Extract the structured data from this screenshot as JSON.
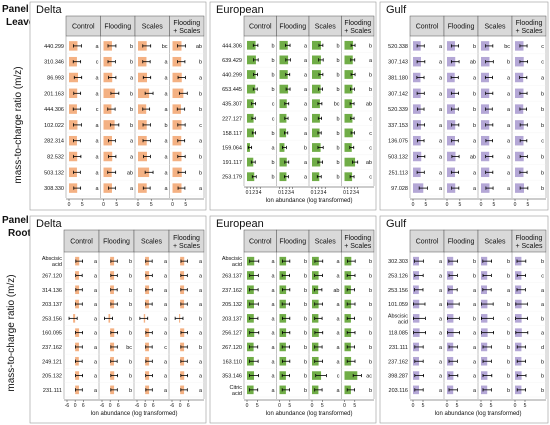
{
  "panel_a": {
    "label": "Panel A",
    "sub": "Leaves"
  },
  "panel_b": {
    "label": "Panel B",
    "sub": "Roots"
  },
  "y_axis_title": "mass-to-charge ratio (m/z)",
  "x_axis_title": "Ion abundance (log transformed)",
  "treatment_headers": [
    "Control",
    "Flooding",
    "Scales",
    "Flooding + Scales"
  ],
  "colors": {
    "Delta": "#f4b183",
    "European": "#70ad47",
    "Gulf": "#b4a7d6",
    "header_bg": "#d9d9d9",
    "error_bar": "#000000"
  },
  "chart_data": [
    {
      "type": "bar",
      "panel": "Panel A",
      "title": "Delta",
      "xlabel": "",
      "ylabel": "mass-to-charge ratio (m/z)",
      "xticks": [
        "0",
        "5"
      ],
      "xlim": [
        0,
        7
      ],
      "categories": [
        "440.299",
        "310.346",
        "86.993",
        "201.163",
        "444.306",
        "102.022",
        "282.314",
        "82.532",
        "503.132",
        "308.330"
      ],
      "series": [
        {
          "name": "Control",
          "values": [
            3.2,
            3.0,
            3.4,
            3.1,
            3.0,
            3.2,
            3.0,
            3.1,
            3.0,
            3.1
          ],
          "err": [
            1.5,
            1.4,
            1.4,
            1.3,
            1.4,
            1.5,
            1.3,
            1.4,
            1.3,
            1.3
          ],
          "letters": [
            "a",
            "c",
            "a",
            "a",
            "c",
            "a",
            "a",
            "a",
            "a",
            "a"
          ]
        },
        {
          "name": "Flooding",
          "values": [
            3.2,
            3.1,
            3.3,
            4.3,
            3.0,
            4.2,
            3.2,
            3.3,
            3.1,
            3.2
          ],
          "err": [
            1.5,
            1.4,
            1.4,
            1.5,
            1.4,
            1.6,
            1.3,
            1.4,
            1.5,
            1.3
          ],
          "letters": [
            "b",
            "b",
            "a",
            "b",
            "b",
            "b",
            "a",
            "a",
            "ab",
            "a"
          ]
        },
        {
          "name": "Scales",
          "values": [
            3.3,
            3.2,
            3.4,
            4.2,
            3.1,
            3.3,
            3.3,
            3.4,
            4.2,
            3.3
          ],
          "err": [
            1.5,
            1.4,
            1.4,
            1.5,
            1.3,
            1.4,
            1.4,
            1.3,
            1.5,
            1.3
          ],
          "letters": [
            "bc",
            "a",
            "a",
            "a",
            "a",
            "b",
            "a",
            "a",
            "a",
            "a"
          ]
        },
        {
          "name": "Flooding + Scales",
          "values": [
            3.4,
            3.3,
            3.5,
            4.1,
            3.2,
            3.4,
            3.3,
            3.4,
            3.5,
            3.4
          ],
          "err": [
            1.5,
            1.4,
            1.4,
            1.5,
            1.4,
            1.4,
            1.3,
            1.4,
            1.4,
            1.3
          ],
          "letters": [
            "ab",
            "b",
            "a",
            "b",
            "b",
            "c",
            "a",
            "b",
            "b",
            "a"
          ]
        }
      ]
    },
    {
      "type": "bar",
      "panel": "Panel A",
      "title": "European",
      "xlabel": "Ion abundance (log transformed)",
      "ylabel": "",
      "xticks": [
        "0",
        "1",
        "2",
        "3",
        "4"
      ],
      "xlim": [
        0,
        5
      ],
      "categories": [
        "444.306",
        "639.429",
        "440.299",
        "653.445",
        "435.307",
        "227.127",
        "158.117",
        "159.064",
        "191.117",
        "253.179"
      ],
      "series": [
        {
          "name": "Control",
          "values": [
            2.6,
            2.7,
            2.6,
            2.5,
            2.0,
            2.0,
            2.1,
            0.9,
            1.9,
            2.2
          ],
          "err": [
            0.7,
            0.7,
            0.6,
            0.6,
            0.6,
            0.5,
            0.5,
            0.5,
            0.6,
            0.6
          ],
          "letters": [
            "b",
            "b",
            "b",
            "b",
            "c",
            "c",
            "b",
            "a",
            "b",
            "b"
          ]
        },
        {
          "name": "Flooding",
          "values": [
            2.5,
            2.6,
            2.5,
            2.6,
            2.2,
            2.1,
            2.0,
            1.5,
            2.2,
            2.1
          ],
          "err": [
            0.7,
            0.7,
            0.6,
            0.6,
            0.6,
            0.5,
            0.5,
            0.6,
            0.6,
            0.6
          ],
          "letters": [
            "a",
            "a",
            "a",
            "a",
            "a",
            "a",
            "a",
            "b",
            "a",
            "a"
          ]
        },
        {
          "name": "Scales",
          "values": [
            2.7,
            2.7,
            2.7,
            2.6,
            2.4,
            2.4,
            2.3,
            2.6,
            2.5,
            2.2
          ],
          "err": [
            0.6,
            0.7,
            0.6,
            0.6,
            0.6,
            0.5,
            0.5,
            0.8,
            0.7,
            0.6
          ],
          "letters": [
            "b",
            "b",
            "b",
            "b",
            "bc",
            "b",
            "b",
            "b",
            "b",
            "b"
          ]
        },
        {
          "name": "Flooding + Scales",
          "values": [
            2.6,
            2.5,
            2.6,
            2.4,
            2.3,
            2.4,
            2.5,
            2.2,
            3.2,
            2.3
          ],
          "err": [
            0.6,
            0.6,
            0.6,
            0.6,
            0.6,
            0.5,
            0.5,
            0.6,
            0.8,
            0.6
          ],
          "letters": [
            "b",
            "a",
            "b",
            "b",
            "ab",
            "c",
            "c",
            "c",
            "ab",
            "c"
          ]
        }
      ]
    },
    {
      "type": "bar",
      "panel": "Panel A",
      "title": "Gulf",
      "xlabel": "",
      "ylabel": "",
      "xticks": [
        "0",
        "5"
      ],
      "xlim": [
        0,
        7
      ],
      "categories": [
        "520.338",
        "307.143",
        "381.180",
        "307.142",
        "520.339",
        "337.153",
        "136.075",
        "503.132",
        "251.113",
        "97.028"
      ],
      "series": [
        {
          "name": "Control",
          "values": [
            3.0,
            3.1,
            2.9,
            3.0,
            3.0,
            3.1,
            3.0,
            3.2,
            3.0,
            4.0
          ],
          "err": [
            1.4,
            1.5,
            1.4,
            1.4,
            1.3,
            1.4,
            1.3,
            1.4,
            1.4,
            1.6
          ],
          "letters": [
            "a",
            "a",
            "a",
            "a",
            "a",
            "a",
            "a",
            "a",
            "a",
            "a"
          ]
        },
        {
          "name": "Flooding",
          "values": [
            3.1,
            3.2,
            3.0,
            3.1,
            3.1,
            3.2,
            3.1,
            3.3,
            3.1,
            3.2
          ],
          "err": [
            1.4,
            1.5,
            1.4,
            1.4,
            1.3,
            1.4,
            1.3,
            1.4,
            1.4,
            1.4
          ],
          "letters": [
            "b",
            "ab",
            "a",
            "b",
            "b",
            "b",
            "a",
            "ab",
            "a",
            "a"
          ]
        },
        {
          "name": "Scales",
          "values": [
            3.2,
            3.3,
            3.1,
            3.2,
            3.1,
            3.2,
            3.2,
            3.2,
            3.2,
            3.3
          ],
          "err": [
            1.4,
            1.5,
            1.4,
            1.4,
            1.3,
            1.4,
            1.3,
            1.4,
            1.4,
            1.4
          ],
          "letters": [
            "bc",
            "b",
            "a",
            "a",
            "a",
            "a",
            "a",
            "a",
            "a",
            "a"
          ]
        },
        {
          "name": "Flooding + Scales",
          "values": [
            3.3,
            3.4,
            3.2,
            3.3,
            3.2,
            3.4,
            3.3,
            3.4,
            3.3,
            3.5
          ],
          "err": [
            1.4,
            1.5,
            1.4,
            1.4,
            1.3,
            1.4,
            1.3,
            1.4,
            1.4,
            1.5
          ],
          "letters": [
            "c",
            "c",
            "a",
            "b",
            "b",
            "b",
            "c",
            "b",
            "b",
            "b"
          ]
        }
      ]
    },
    {
      "type": "bar",
      "panel": "Panel B",
      "title": "Delta",
      "xlabel": "",
      "ylabel": "mass-to-charge ratio (m/z)",
      "xticks": [
        "-6",
        "0",
        "6"
      ],
      "xlim": [
        -6,
        8
      ],
      "categories": [
        "Abscisic acid",
        "267.120",
        "314.136",
        "203.137",
        "253.156",
        "160.095",
        "237.162",
        "249.121",
        "205.132",
        "231.111"
      ],
      "series": [
        {
          "name": "Control",
          "values": [
            3.0,
            2.8,
            2.9,
            2.8,
            -1.5,
            2.9,
            2.8,
            2.7,
            2.9,
            2.8
          ],
          "err": [
            2.5,
            2.4,
            2.4,
            2.5,
            3.0,
            2.6,
            2.5,
            2.5,
            2.6,
            2.5
          ],
          "letters": [
            "a",
            "a",
            "a",
            "a",
            "a",
            "a",
            "a",
            "a",
            "a",
            "a"
          ]
        },
        {
          "name": "Flooding",
          "values": [
            2.9,
            2.9,
            2.8,
            2.9,
            -1.2,
            3.0,
            2.9,
            2.8,
            3.0,
            2.9
          ],
          "err": [
            2.4,
            2.4,
            2.4,
            2.4,
            3.0,
            2.5,
            2.4,
            2.4,
            2.5,
            2.4
          ],
          "letters": [
            "b",
            "b",
            "b",
            "b",
            "b",
            "b",
            "bc",
            "b",
            "b",
            "b"
          ]
        },
        {
          "name": "Scales",
          "values": [
            2.8,
            2.9,
            2.9,
            2.8,
            -1.0,
            2.9,
            2.8,
            2.9,
            2.9,
            2.9
          ],
          "err": [
            2.4,
            2.4,
            2.4,
            2.4,
            2.9,
            2.4,
            2.4,
            2.4,
            2.5,
            2.4
          ],
          "letters": [
            "a",
            "a",
            "a",
            "a",
            "a",
            "a",
            "c",
            "a",
            "a",
            "a"
          ]
        },
        {
          "name": "Flooding + Scales",
          "values": [
            3.0,
            2.9,
            2.9,
            2.9,
            -0.8,
            3.0,
            2.9,
            2.9,
            3.0,
            2.9
          ],
          "err": [
            2.4,
            2.4,
            2.4,
            2.4,
            2.9,
            2.4,
            2.4,
            2.4,
            2.5,
            2.4
          ],
          "letters": [
            "a",
            "a",
            "a",
            "a",
            "b",
            "a",
            "b",
            "a",
            "a",
            "a"
          ]
        }
      ]
    },
    {
      "type": "bar",
      "panel": "Panel B",
      "title": "European",
      "xlabel": "Ion abundance (log transformed)",
      "ylabel": "",
      "xticks": [
        "0",
        "5"
      ],
      "xlim": [
        0,
        8
      ],
      "categories": [
        "Abscisic acid",
        "263.137",
        "237.162",
        "205.132",
        "203.137",
        "256.127",
        "267.120",
        "163.110",
        "353.146",
        "Citric acid"
      ],
      "series": [
        {
          "name": "Control",
          "values": [
            3.5,
            3.4,
            3.3,
            3.4,
            3.3,
            3.5,
            3.2,
            3.3,
            3.4,
            3.2
          ],
          "err": [
            2.2,
            2.1,
            2.1,
            2.1,
            2.0,
            2.2,
            2.0,
            2.1,
            2.2,
            2.0
          ],
          "letters": [
            "a",
            "a",
            "a",
            "a",
            "a",
            "a",
            "a",
            "a",
            "a",
            "a"
          ]
        },
        {
          "name": "Flooding",
          "values": [
            3.2,
            3.1,
            3.2,
            3.1,
            3.2,
            3.2,
            3.1,
            3.2,
            3.1,
            3.1
          ],
          "err": [
            1.8,
            1.8,
            1.8,
            1.8,
            1.8,
            1.8,
            1.8,
            1.8,
            1.8,
            1.8
          ],
          "letters": [
            "b",
            "b",
            "b",
            "b",
            "b",
            "b",
            "b",
            "b",
            "b",
            "b"
          ]
        },
        {
          "name": "Scales",
          "values": [
            3.3,
            3.2,
            3.0,
            3.2,
            3.1,
            3.3,
            3.1,
            3.2,
            4.4,
            3.1
          ],
          "err": [
            1.9,
            1.9,
            1.8,
            1.9,
            1.8,
            1.9,
            1.8,
            1.9,
            2.6,
            1.8
          ],
          "letters": [
            "a",
            "a",
            "ab",
            "a",
            "a",
            "a",
            "a",
            "a",
            "c",
            "a"
          ]
        },
        {
          "name": "Flooding + Scales",
          "values": [
            3.3,
            3.2,
            3.1,
            3.2,
            3.1,
            3.2,
            3.1,
            3.2,
            6.2,
            3.1
          ],
          "err": [
            1.9,
            1.9,
            1.8,
            1.9,
            1.8,
            1.9,
            1.8,
            1.9,
            2.0,
            1.8
          ],
          "letters": [
            "b",
            "b",
            "b",
            "b",
            "b",
            "b",
            "b",
            "b",
            "ac",
            "b"
          ]
        }
      ]
    },
    {
      "type": "bar",
      "panel": "Panel B",
      "title": "Gulf",
      "xlabel": "",
      "ylabel": "",
      "xticks": [
        "0",
        "5",
        "0",
        "5",
        "0",
        "5",
        "0",
        "5"
      ],
      "xlim": [
        0,
        9
      ],
      "categories": [
        "302.303",
        "253.126",
        "253.156",
        "101.059",
        "Abscisic acid",
        "118.085",
        "231.111",
        "237.162",
        "398.287",
        "203.116"
      ],
      "series": [
        {
          "name": "Control",
          "values": [
            3.0,
            3.0,
            2.9,
            3.1,
            3.2,
            3.3,
            3.0,
            3.0,
            3.1,
            3.0
          ],
          "err": [
            2.2,
            2.1,
            2.1,
            2.9,
            3.0,
            3.0,
            2.1,
            2.1,
            2.2,
            2.1
          ],
          "letters": [
            "a",
            "a",
            "a",
            "a",
            "a",
            "a",
            "a",
            "a",
            "a",
            "a"
          ]
        },
        {
          "name": "Flooding",
          "values": [
            3.1,
            3.1,
            3.0,
            3.2,
            3.2,
            3.3,
            3.1,
            3.1,
            3.2,
            3.1
          ],
          "err": [
            2.2,
            2.1,
            2.1,
            2.9,
            3.0,
            3.0,
            2.1,
            2.1,
            2.2,
            2.1
          ],
          "letters": [
            "b",
            "b",
            "a",
            "a",
            "b",
            "a",
            "a",
            "a",
            "a",
            "a"
          ]
        },
        {
          "name": "Scales",
          "values": [
            3.1,
            3.1,
            3.0,
            3.2,
            3.2,
            3.3,
            3.1,
            3.1,
            3.2,
            3.1
          ],
          "err": [
            2.2,
            2.1,
            2.1,
            2.9,
            3.0,
            3.0,
            2.1,
            2.1,
            2.2,
            2.1
          ],
          "letters": [
            "b",
            "b",
            "a",
            "b",
            "c",
            "b",
            "b",
            "b",
            "b",
            "b"
          ]
        },
        {
          "name": "Flooding + Scales",
          "values": [
            3.2,
            3.2,
            3.1,
            3.3,
            3.3,
            3.4,
            3.2,
            3.2,
            3.3,
            3.2
          ],
          "err": [
            2.2,
            2.1,
            2.1,
            2.9,
            3.0,
            3.0,
            2.1,
            2.1,
            2.2,
            2.1
          ],
          "letters": [
            "b",
            "c",
            "a",
            "a",
            "b",
            "a",
            "d",
            "b",
            "b",
            "b"
          ]
        }
      ]
    }
  ]
}
